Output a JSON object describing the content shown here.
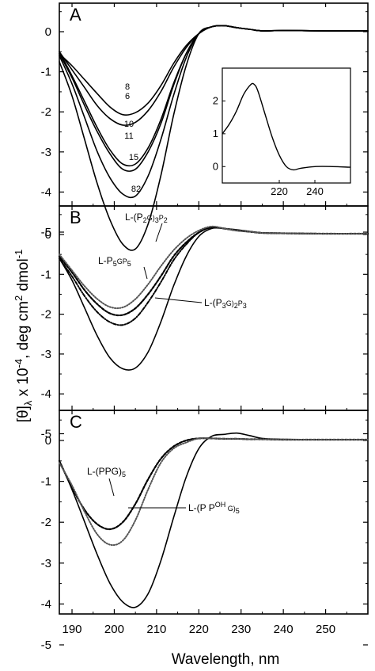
{
  "chart_data": {
    "type": "line",
    "xlabel": "Wavelength, nm",
    "ylabel_parts": [
      "[θ]",
      "λ",
      " x 10",
      "-4",
      ", deg cm",
      "2",
      " dmol",
      "-1"
    ],
    "x_ticks": [
      "190",
      "200",
      "210",
      "220",
      "230",
      "240",
      "250"
    ],
    "xlim": [
      187,
      260
    ],
    "ylim": [
      -6,
      0.7
    ],
    "y_ticks": [
      "0",
      "-1",
      "-2",
      "-3",
      "-4",
      "-5"
    ],
    "panels": [
      {
        "label": "A",
        "series": [
          {
            "label": "8",
            "style": "solid",
            "x": [
              187,
              190,
              193,
              196,
              199,
              202,
              205,
              208,
              211,
              214,
              217,
              220,
              223,
              226,
              229,
              232,
              235,
              240,
              250,
              260
            ],
            "y": [
              -0.55,
              -0.85,
              -1.2,
              -1.55,
              -1.88,
              -2.07,
              -2.02,
              -1.78,
              -1.35,
              -0.8,
              -0.35,
              -0.05,
              0.12,
              0.15,
              0.1,
              0.06,
              0.02,
              0.03,
              0.02,
              0.02
            ]
          },
          {
            "label": "6",
            "style": "solid",
            "x": [
              187,
              190,
              193,
              196,
              199,
              202,
              205,
              208,
              211,
              214,
              217,
              220,
              223,
              226,
              229,
              232,
              235,
              240,
              250,
              260
            ],
            "y": [
              -0.5,
              -0.95,
              -1.4,
              -1.85,
              -2.17,
              -2.33,
              -2.26,
              -1.97,
              -1.5,
              -0.9,
              -0.4,
              -0.05,
              0.12,
              0.15,
              0.1,
              0.06,
              0.02,
              0.03,
              0.02,
              0.02
            ]
          },
          {
            "label": "10",
            "style": "solid",
            "x": [
              187,
              190,
              193,
              196,
              199,
              202,
              205,
              208,
              211,
              214,
              217,
              220,
              223,
              226,
              229,
              232,
              235,
              240,
              250,
              260
            ],
            "y": [
              -0.5,
              -1.1,
              -1.75,
              -2.4,
              -2.95,
              -3.3,
              -3.3,
              -2.9,
              -2.2,
              -1.3,
              -0.55,
              -0.05,
              0.12,
              0.15,
              0.1,
              0.06,
              0.02,
              0.03,
              0.02,
              0.02
            ]
          },
          {
            "label": "11",
            "style": "solid",
            "x": [
              187,
              190,
              193,
              196,
              199,
              202,
              205,
              208,
              211,
              214,
              217,
              220,
              223,
              226,
              229,
              232,
              235,
              240,
              250,
              260
            ],
            "y": [
              -0.55,
              -1.15,
              -1.85,
              -2.5,
              -3.05,
              -3.43,
              -3.43,
              -3.0,
              -2.3,
              -1.35,
              -0.55,
              -0.05,
              0.12,
              0.15,
              0.1,
              0.06,
              0.02,
              0.03,
              0.02,
              0.02
            ]
          },
          {
            "label": "15",
            "style": "solid",
            "x": [
              187,
              190,
              193,
              196,
              199,
              202,
              205,
              208,
              211,
              214,
              217,
              220,
              223,
              226,
              229,
              232,
              235,
              240,
              250,
              260
            ],
            "y": [
              -0.6,
              -1.3,
              -2.15,
              -3.0,
              -3.65,
              -4.05,
              -4.1,
              -3.6,
              -2.7,
              -1.6,
              -0.65,
              -0.05,
              0.12,
              0.15,
              0.1,
              0.06,
              0.02,
              0.03,
              0.02,
              0.02
            ]
          },
          {
            "label": "82",
            "style": "solid",
            "x": [
              187,
              190,
              193,
              196,
              199,
              202,
              205,
              208,
              211,
              214,
              217,
              220,
              223,
              226,
              229,
              232,
              235,
              240,
              250,
              260
            ],
            "y": [
              -0.75,
              -1.6,
              -2.7,
              -3.8,
              -4.7,
              -5.3,
              -5.42,
              -4.8,
              -3.6,
              -2.1,
              -0.85,
              -0.05,
              0.12,
              0.15,
              0.1,
              0.06,
              0.02,
              0.03,
              0.02,
              0.02
            ]
          }
        ],
        "inset": {
          "x_ticks": [
            "220",
            "240"
          ],
          "y_ticks": [
            "0",
            "1",
            "2"
          ],
          "xlim": [
            188,
            260
          ],
          "ylim": [
            -0.5,
            3
          ],
          "x": [
            188,
            192,
            196,
            200,
            204,
            206,
            208,
            212,
            216,
            220,
            224,
            228,
            232,
            240,
            250,
            260
          ],
          "y": [
            1.0,
            1.3,
            1.7,
            2.2,
            2.5,
            2.5,
            2.3,
            1.6,
            0.9,
            0.35,
            0.0,
            -0.1,
            -0.05,
            0.0,
            0.0,
            -0.02
          ]
        }
      },
      {
        "label": "B",
        "series": [
          {
            "label": "",
            "style": "solid",
            "x": [
              187,
              190,
              193,
              196,
              199,
              202,
              205,
              208,
              211,
              214,
              217,
              220,
              223,
              226,
              229,
              232,
              235,
              240,
              250,
              260
            ],
            "y": [
              -0.6,
              -1.15,
              -1.85,
              -2.55,
              -3.1,
              -3.37,
              -3.35,
              -2.95,
              -2.2,
              -1.3,
              -0.55,
              -0.05,
              0.15,
              0.15,
              0.12,
              0.08,
              0.04,
              0.03,
              0.02,
              0.02
            ]
          },
          {
            "label": "L-(P3G)2P3",
            "style": "dashdot",
            "x": [
              187,
              190,
              193,
              196,
              199,
              202,
              205,
              208,
              211,
              214,
              217,
              220,
              223,
              226,
              229,
              232,
              235,
              240,
              250,
              260
            ],
            "y": [
              -0.6,
              -1.05,
              -1.55,
              -1.95,
              -2.2,
              -2.27,
              -2.1,
              -1.7,
              -1.2,
              -0.65,
              -0.25,
              0.05,
              0.18,
              0.15,
              0.1,
              0.07,
              0.04,
              0.03,
              0.02,
              0.02
            ]
          },
          {
            "label": "L-P5GP5",
            "style": "dashed",
            "x": [
              187,
              190,
              193,
              196,
              199,
              202,
              205,
              208,
              211,
              214,
              217,
              220,
              223,
              226,
              229,
              232,
              235,
              240,
              250,
              260
            ],
            "y": [
              -0.55,
              -0.95,
              -1.4,
              -1.75,
              -1.98,
              -2.02,
              -1.85,
              -1.5,
              -1.05,
              -0.55,
              -0.2,
              0.05,
              0.18,
              0.15,
              0.1,
              0.07,
              0.04,
              0.03,
              0.02,
              0.02
            ]
          },
          {
            "label": "L-(P2G)3P2",
            "style": "dotted",
            "x": [
              187,
              190,
              193,
              196,
              199,
              202,
              205,
              208,
              211,
              214,
              217,
              220,
              223,
              226,
              229,
              232,
              235,
              240,
              250,
              260
            ],
            "y": [
              -0.5,
              -0.9,
              -1.3,
              -1.62,
              -1.82,
              -1.83,
              -1.62,
              -1.25,
              -0.8,
              -0.4,
              -0.1,
              0.1,
              0.2,
              0.15,
              0.1,
              0.07,
              0.04,
              0.03,
              0.02,
              0.02
            ]
          }
        ],
        "annotations": [
          {
            "base": "L-(P",
            "sub1": "2",
            "mid": "G)",
            "sub2": "3",
            "end": "P",
            "sub3": "2"
          },
          {
            "base": "L-P",
            "sub1": "5",
            "mid": "GP",
            "sub2": "5",
            "end": "",
            "sub3": ""
          },
          {
            "base": "L-(P",
            "sub1": "3",
            "mid": "G)",
            "sub2": "2",
            "end": "P",
            "sub3": "3"
          }
        ]
      },
      {
        "label": "C",
        "series": [
          {
            "label": "",
            "style": "solid",
            "x": [
              187,
              190,
              193,
              196,
              199,
              202,
              205,
              208,
              211,
              214,
              217,
              220,
              223,
              226,
              229,
              232,
              235,
              240,
              250,
              260
            ],
            "y": [
              -0.5,
              -1.2,
              -2.0,
              -2.8,
              -3.5,
              -3.95,
              -4.08,
              -3.75,
              -2.95,
              -1.9,
              -0.9,
              -0.2,
              0.1,
              0.15,
              0.18,
              0.12,
              0.05,
              0.03,
              0.02,
              0.02
            ]
          },
          {
            "label": "L-(PPG)5",
            "style": "dashed",
            "x": [
              187,
              190,
              193,
              196,
              199,
              202,
              205,
              208,
              211,
              214,
              217,
              220,
              223,
              226,
              229,
              232,
              235,
              240,
              250,
              260
            ],
            "y": [
              -0.5,
              -1.15,
              -1.7,
              -2.05,
              -2.17,
              -2.0,
              -1.55,
              -0.95,
              -0.45,
              -0.15,
              0.0,
              0.05,
              0.05,
              0.04,
              0.04,
              0.03,
              0.03,
              0.02,
              0.02,
              0.02
            ]
          },
          {
            "label": "L-(P POH G)5",
            "style": "dotted",
            "x": [
              187,
              190,
              193,
              196,
              199,
              202,
              205,
              208,
              211,
              214,
              217,
              220,
              223,
              226,
              229,
              232,
              235,
              240,
              250,
              260
            ],
            "y": [
              -0.55,
              -1.1,
              -1.75,
              -2.3,
              -2.55,
              -2.45,
              -1.95,
              -1.2,
              -0.55,
              -0.2,
              -0.05,
              0.05,
              0.05,
              0.04,
              0.04,
              0.03,
              0.03,
              0.02,
              0.02,
              0.02
            ]
          }
        ],
        "annotations": [
          {
            "base": "L-(PPG)",
            "sub1": "5",
            "mid": "",
            "sub2": "",
            "end": "",
            "sub3": ""
          },
          {
            "base": "L-(P P",
            "sup": "OH",
            "mid": " G)",
            "sub2": "5",
            "end": "",
            "sub3": ""
          }
        ]
      }
    ]
  }
}
